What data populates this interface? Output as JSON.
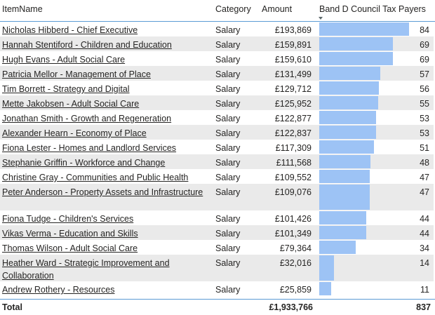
{
  "columns": {
    "name": "ItemName",
    "category": "Category",
    "amount": "Amount",
    "bar": "Band D Council Tax Payers"
  },
  "max_payers": 84,
  "rows": [
    {
      "name": "Nicholas Hibberd - Chief Executive",
      "category": "Salary",
      "amount": "£193,869",
      "payers": 84
    },
    {
      "name": "Hannah Stentiford - Children and Education",
      "category": "Salary",
      "amount": "£159,891",
      "payers": 69
    },
    {
      "name": "Hugh Evans - Adult Social Care",
      "category": "Salary",
      "amount": "£159,610",
      "payers": 69
    },
    {
      "name": "Patricia Mellor - Management of Place",
      "category": "Salary",
      "amount": "£131,499",
      "payers": 57
    },
    {
      "name": "Tim Borrett - Strategy and Digital",
      "category": "Salary",
      "amount": "£129,712",
      "payers": 56
    },
    {
      "name": "Mette Jakobsen - Adult Social Care",
      "category": "Salary",
      "amount": "£125,952",
      "payers": 55
    },
    {
      "name": "Jonathan Smith - Growth and Regeneration",
      "category": "Salary",
      "amount": "£122,877",
      "payers": 53
    },
    {
      "name": "Alexander Hearn - Economy of Place",
      "category": "Salary",
      "amount": "£122,837",
      "payers": 53
    },
    {
      "name": "Fiona Lester - Homes and Landlord Services",
      "category": "Salary",
      "amount": "£117,309",
      "payers": 51
    },
    {
      "name": "Stephanie Griffin - Workforce and Change",
      "category": "Salary",
      "amount": "£111,568",
      "payers": 48
    },
    {
      "name": "Christine Gray - Communities and Public Health",
      "category": "Salary",
      "amount": "£109,552",
      "payers": 47
    },
    {
      "name": "Peter Anderson - Property Assets and Infrastructure",
      "category": "Salary",
      "amount": "£109,076",
      "payers": 47
    },
    {
      "name": "Fiona Tudge - Children's Services",
      "category": "Salary",
      "amount": "£101,426",
      "payers": 44
    },
    {
      "name": "Vikas Verma - Education and Skills",
      "category": "Salary",
      "amount": "£101,349",
      "payers": 44
    },
    {
      "name": "Thomas Wilson - Adult Social Care",
      "category": "Salary",
      "amount": "£79,364",
      "payers": 34
    },
    {
      "name": "Heather Ward - Strategic Improvement and Collaboration",
      "category": "Salary",
      "amount": "£32,016",
      "payers": 14
    },
    {
      "name": "Andrew Rothery - Resources",
      "category": "Salary",
      "amount": "£25,859",
      "payers": 11
    }
  ],
  "total": {
    "label": "Total",
    "amount": "£1,933,766",
    "payers": "837"
  }
}
